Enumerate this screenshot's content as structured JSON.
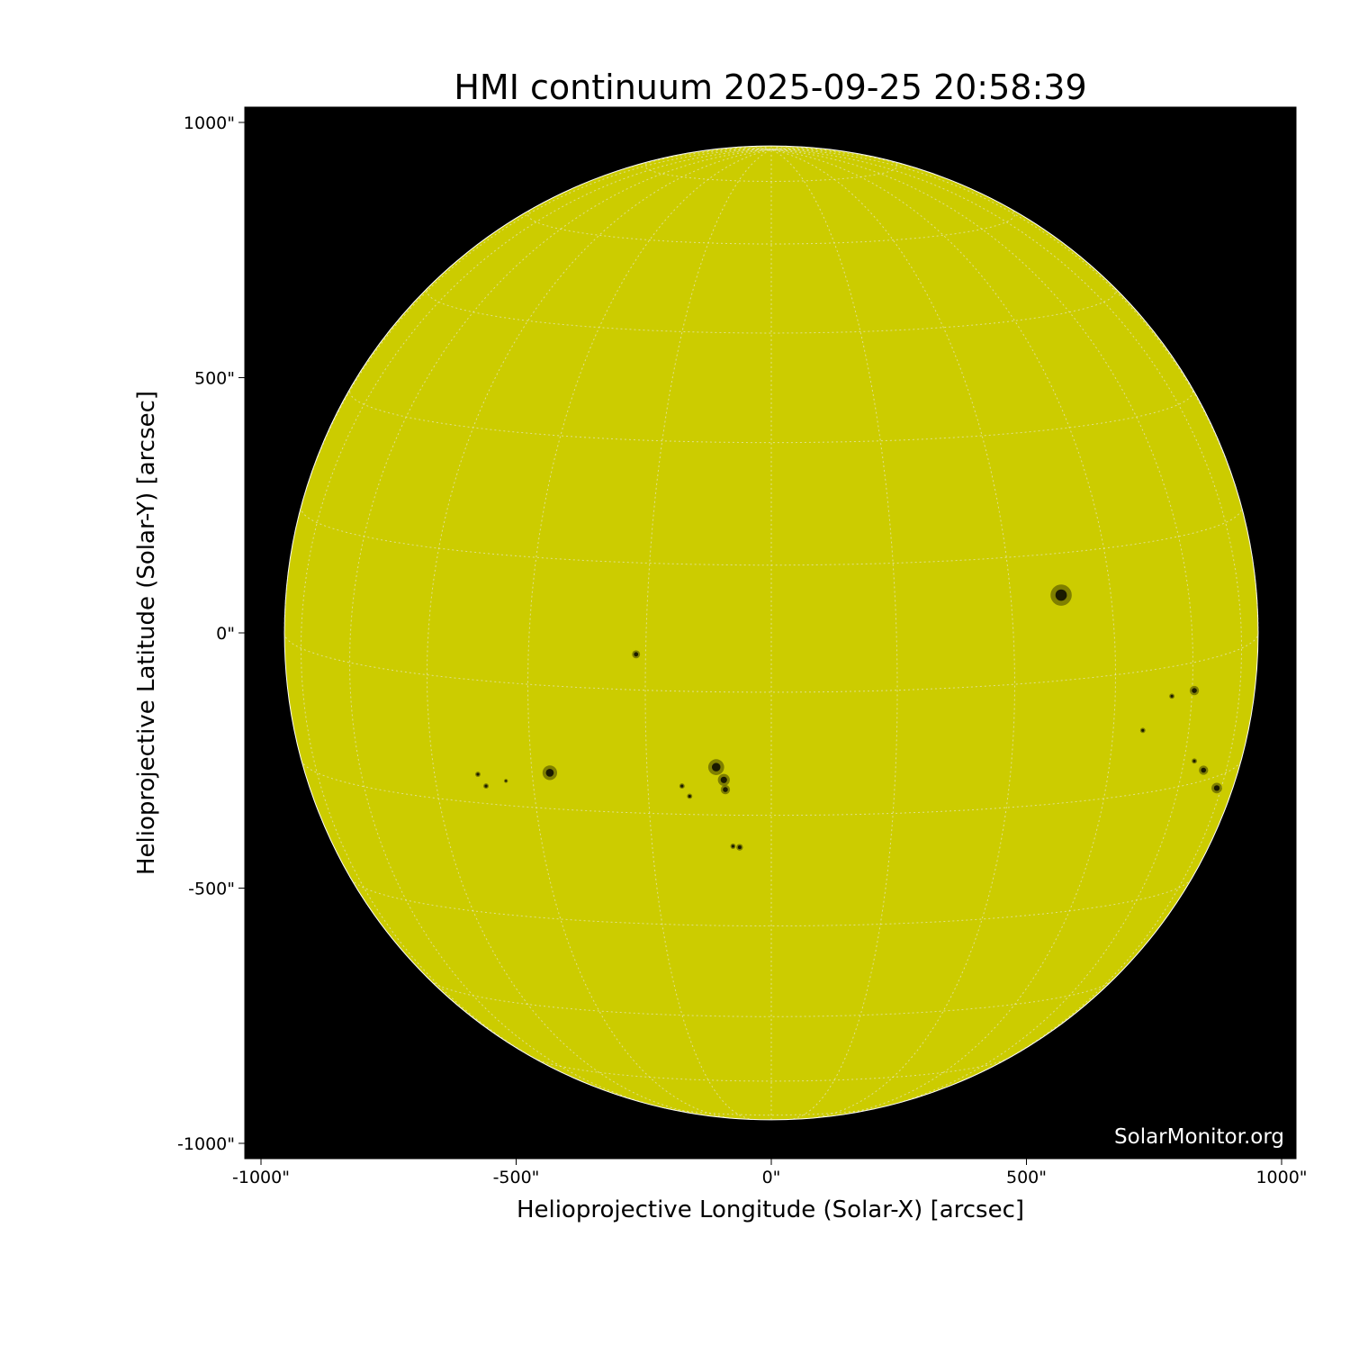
{
  "title": "HMI continuum 2025-09-25 20:58:39",
  "watermark": "SolarMonitor.org",
  "colors": {
    "disk": "#cccc00",
    "background": "#000000",
    "sunspot": "#1a1a00",
    "grid": "#e8e8c8"
  },
  "x_axis": {
    "label": "Helioprojective Longitude (Solar-X) [arcsec]",
    "range": [
      -1030,
      1030
    ],
    "ticks": [
      {
        "value": -1000,
        "label": "-1000\""
      },
      {
        "value": -500,
        "label": "-500\""
      },
      {
        "value": 0,
        "label": "0\""
      },
      {
        "value": 500,
        "label": "500\""
      },
      {
        "value": 1000,
        "label": "1000\""
      }
    ]
  },
  "y_axis": {
    "label": "Helioprojective Latitude (Solar-Y) [arcsec]",
    "range": [
      -1030,
      1030
    ],
    "ticks": [
      {
        "value": 1000,
        "label": "1000\""
      },
      {
        "value": 500,
        "label": "500\""
      },
      {
        "value": 0,
        "label": "0\""
      },
      {
        "value": -500,
        "label": "-500\""
      },
      {
        "value": -1000,
        "label": "-1000\""
      }
    ]
  },
  "solar_radius_arcsec": 954,
  "grid_spacing_deg": 15,
  "sunspots_arcsec": [
    [
      568,
      74,
      16
    ],
    [
      -265,
      -42,
      6
    ],
    [
      -434,
      -274,
      11
    ],
    [
      -108,
      -263,
      12
    ],
    [
      -93,
      -288,
      9
    ],
    [
      -90,
      -307,
      7
    ],
    [
      -62,
      -420,
      5
    ],
    [
      -75,
      -418,
      4
    ],
    [
      829,
      -113,
      7
    ],
    [
      785,
      -124,
      4
    ],
    [
      728,
      -191,
      4
    ],
    [
      847,
      -269,
      7
    ],
    [
      873,
      -304,
      8
    ],
    [
      829,
      -251,
      4
    ],
    [
      -575,
      -277,
      4
    ],
    [
      -559,
      -300,
      4
    ],
    [
      -520,
      -290,
      3
    ],
    [
      -175,
      -300,
      4
    ],
    [
      -160,
      -320,
      4
    ]
  ]
}
